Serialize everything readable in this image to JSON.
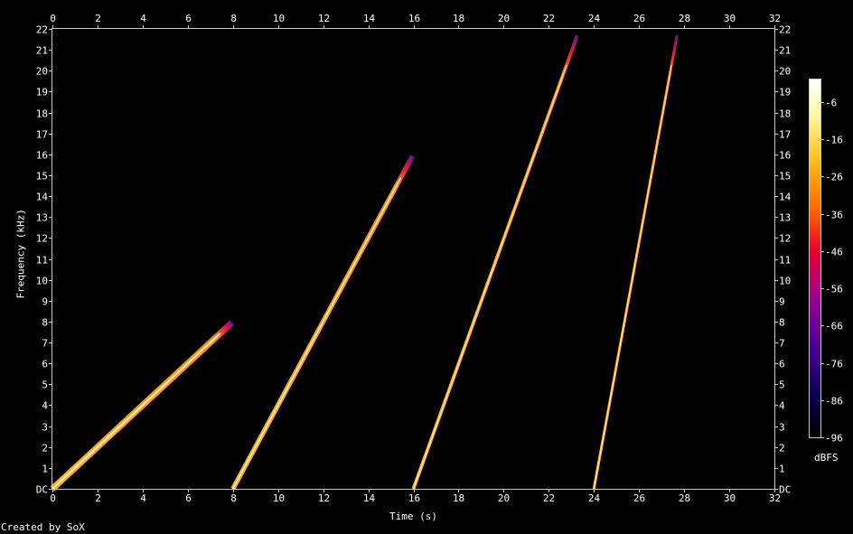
{
  "chart_data": {
    "type": "heatmap",
    "xlabel": "Time (s)",
    "ylabel": "Frequency (kHz)",
    "xlim": [
      0,
      32
    ],
    "ylim": [
      0,
      22
    ],
    "x_ticks": [
      0,
      2,
      4,
      6,
      8,
      10,
      12,
      14,
      16,
      18,
      20,
      22,
      24,
      26,
      28,
      30,
      32
    ],
    "y_ticks": [
      "DC",
      "1",
      "2",
      "3",
      "4",
      "5",
      "6",
      "7",
      "8",
      "9",
      "10",
      "11",
      "12",
      "13",
      "14",
      "15",
      "16",
      "17",
      "18",
      "19",
      "20",
      "21",
      "22"
    ],
    "background": "#000000",
    "sweeps": [
      {
        "t": [
          0,
          8
        ],
        "f": [
          0,
          8
        ]
      },
      {
        "t": [
          8,
          16
        ],
        "f": [
          0,
          16
        ]
      },
      {
        "t": [
          16,
          23.3
        ],
        "f": [
          0,
          21.8
        ]
      },
      {
        "t": [
          24,
          27.7
        ],
        "f": [
          0,
          21.8
        ]
      }
    ],
    "colorbar": {
      "unit": "dBFS",
      "ticks": [
        -6,
        -16,
        -26,
        -36,
        -46,
        -56,
        -66,
        -76,
        -86,
        -96
      ],
      "range": [
        -96,
        0
      ],
      "colors": [
        "#000000",
        "#0a0050",
        "#4b0096",
        "#a0008c",
        "#e80028",
        "#ff6a00",
        "#ffc020",
        "#fff8a0",
        "#ffffff"
      ]
    },
    "credit": "Created by SoX"
  }
}
